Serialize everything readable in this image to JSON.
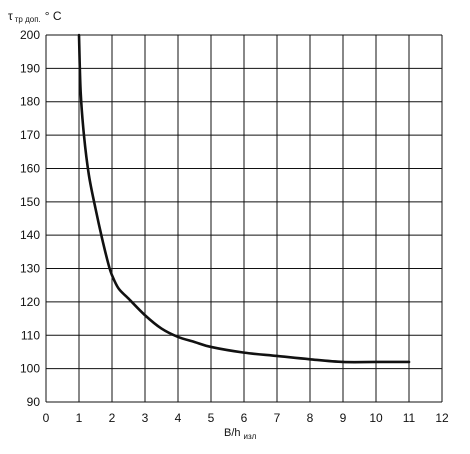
{
  "chart_data": {
    "type": "line",
    "title": "",
    "ylabel": {
      "symbol": "τ",
      "subscript": "тр доп.",
      "unit": "° C"
    },
    "xlabel": {
      "main": "B/h",
      "subscript": "изл"
    },
    "xlim": [
      0,
      12
    ],
    "ylim": [
      90,
      200
    ],
    "x_ticks": [
      "0",
      "1",
      "2",
      "3",
      "4",
      "5",
      "6",
      "7",
      "8",
      "9",
      "10",
      "11",
      "12"
    ],
    "y_ticks": [
      "90",
      "100",
      "110",
      "120",
      "130",
      "140",
      "150",
      "160",
      "170",
      "180",
      "190",
      "200"
    ],
    "grid": true,
    "legend": "none",
    "line_color": "#111111",
    "series": [
      {
        "x": [
          1.0,
          1.05,
          1.15,
          1.3,
          1.5,
          1.7,
          1.9,
          2.0,
          2.2,
          2.5,
          3.0,
          3.5,
          4.0,
          4.5,
          5.0,
          6.0,
          7.0,
          8.0,
          9.0,
          10.0,
          11.0
        ],
        "y": [
          200,
          183,
          170,
          158,
          148,
          139,
          131,
          128,
          124,
          121,
          116,
          112,
          109.5,
          108,
          106.5,
          104.8,
          103.8,
          102.8,
          102.0,
          102.0,
          102.0
        ]
      }
    ]
  }
}
